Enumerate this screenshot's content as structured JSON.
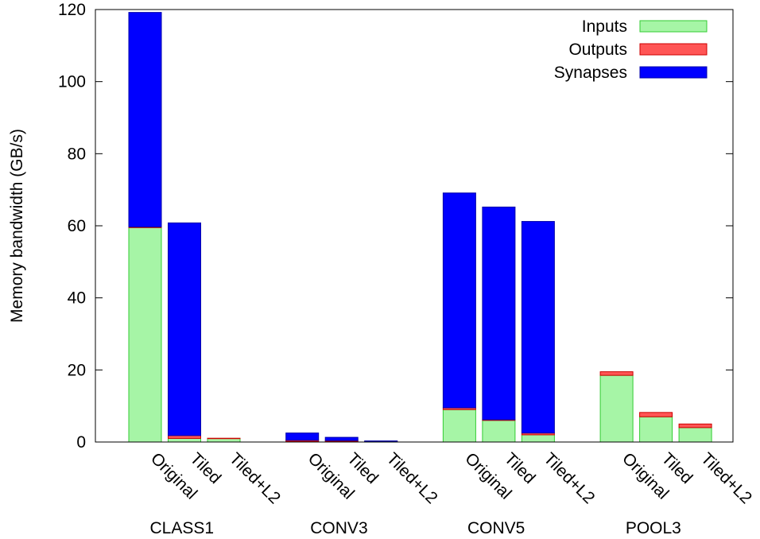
{
  "chart_data": {
    "type": "bar",
    "stacked": true,
    "ylabel": "Memory bandwidth (GB/s)",
    "xlabel": "",
    "ylim": [
      0,
      120
    ],
    "yticks": [
      0,
      20,
      40,
      60,
      80,
      100,
      120
    ],
    "grid": false,
    "legend_position": "top-right",
    "groups": [
      {
        "name": "CLASS1",
        "categories": [
          "Original",
          "Tiled",
          "Tiled+L2"
        ]
      },
      {
        "name": "CONV3",
        "categories": [
          "Original",
          "Tiled",
          "Tiled+L2"
        ]
      },
      {
        "name": "CONV5",
        "categories": [
          "Original",
          "Tiled",
          "Tiled+L2"
        ]
      },
      {
        "name": "POOL3",
        "categories": [
          "Original",
          "Tiled",
          "Tiled+L2"
        ]
      }
    ],
    "series": [
      {
        "name": "Inputs",
        "color": "#a6f5a6",
        "stroke": "#33cc33",
        "values": [
          59.5,
          1.0,
          1.0,
          0.2,
          0.2,
          0.1,
          9.0,
          6.0,
          2.0,
          18.5,
          7.0,
          4.0
        ]
      },
      {
        "name": "Outputs",
        "color": "#ff5555",
        "stroke": "#cc0000",
        "values": [
          0.2,
          0.8,
          0.05,
          0.3,
          0.2,
          0.1,
          0.5,
          0.2,
          0.5,
          1.0,
          1.2,
          1.0
        ]
      },
      {
        "name": "Synapses",
        "color": "#0000ff",
        "stroke": "#0000aa",
        "values": [
          59.5,
          59.0,
          0.0,
          2.0,
          0.9,
          0.1,
          59.6,
          59.0,
          58.7,
          0.0,
          0.0,
          0.0
        ]
      }
    ]
  }
}
